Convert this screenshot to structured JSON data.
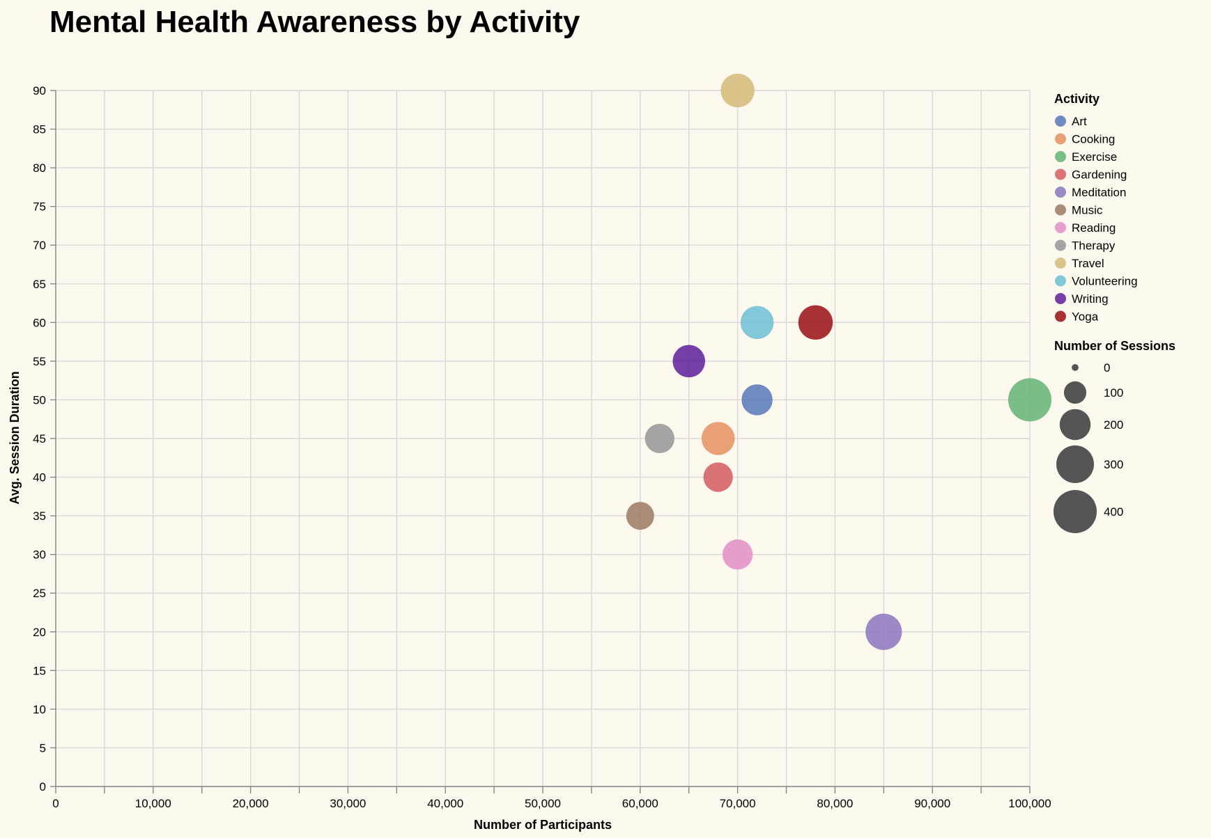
{
  "chart_data": {
    "type": "scatter",
    "title": "Mental Health Awareness by Activity",
    "xlabel": "Number of Participants",
    "ylabel": "Avg. Session Duration",
    "xlim": [
      0,
      100000
    ],
    "ylim": [
      0,
      90
    ],
    "x_ticks": [
      0,
      10000,
      20000,
      30000,
      40000,
      50000,
      60000,
      70000,
      80000,
      90000,
      100000
    ],
    "x_tick_labels": [
      "0",
      "10,000",
      "20,000",
      "30,000",
      "40,000",
      "50,000",
      "60,000",
      "70,000",
      "80,000",
      "90,000",
      "100,000"
    ],
    "y_ticks": [
      0,
      5,
      10,
      15,
      20,
      25,
      30,
      35,
      40,
      45,
      50,
      55,
      60,
      65,
      70,
      75,
      80,
      85,
      90
    ],
    "grid": true,
    "color_legend": {
      "title": "Activity",
      "placement": "right",
      "entries": [
        {
          "name": "Art",
          "color": "#5778b8"
        },
        {
          "name": "Cooking",
          "color": "#e6905f"
        },
        {
          "name": "Exercise",
          "color": "#63b373"
        },
        {
          "name": "Gardening",
          "color": "#d45c5f"
        },
        {
          "name": "Meditation",
          "color": "#8977bd"
        },
        {
          "name": "Music",
          "color": "#9a7a64"
        },
        {
          "name": "Reading",
          "color": "#e28ec5"
        },
        {
          "name": "Therapy",
          "color": "#979797"
        },
        {
          "name": "Travel",
          "color": "#d2bc78"
        },
        {
          "name": "Volunteering",
          "color": "#6dbfd5"
        },
        {
          "name": "Writing",
          "color": "#5e1e9a"
        },
        {
          "name": "Yoga",
          "color": "#990e12"
        }
      ]
    },
    "size_legend": {
      "title": "Number of Sessions",
      "values": [
        0,
        100,
        200,
        300,
        400
      ]
    },
    "points": [
      {
        "activity": "Travel",
        "participants": 70000,
        "duration": 90,
        "sessions": 240
      },
      {
        "activity": "Volunteering",
        "participants": 72000,
        "duration": 60,
        "sessions": 230
      },
      {
        "activity": "Yoga",
        "participants": 78000,
        "duration": 60,
        "sessions": 250
      },
      {
        "activity": "Writing",
        "participants": 65000,
        "duration": 55,
        "sessions": 220
      },
      {
        "activity": "Art",
        "participants": 72000,
        "duration": 50,
        "sessions": 200
      },
      {
        "activity": "Exercise",
        "participants": 100000,
        "duration": 50,
        "sessions": 400
      },
      {
        "activity": "Cooking",
        "participants": 68000,
        "duration": 45,
        "sessions": 230
      },
      {
        "activity": "Therapy",
        "participants": 62000,
        "duration": 45,
        "sessions": 180
      },
      {
        "activity": "Gardening",
        "participants": 68000,
        "duration": 40,
        "sessions": 180
      },
      {
        "activity": "Music",
        "participants": 60000,
        "duration": 35,
        "sessions": 160
      },
      {
        "activity": "Reading",
        "participants": 70000,
        "duration": 30,
        "sessions": 190
      },
      {
        "activity": "Meditation",
        "participants": 85000,
        "duration": 20,
        "sessions": 280
      }
    ]
  }
}
